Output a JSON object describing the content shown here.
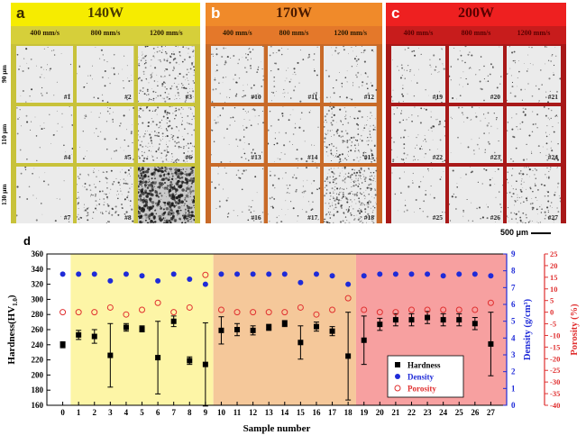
{
  "figure": {
    "panels": [
      {
        "letter": "a",
        "power": "140W",
        "header_color": "#f6ec00",
        "sub_color": "#d6cf3a",
        "border": "#c8c23a",
        "text_color": "#4a3a00",
        "speeds": [
          "400 mm/s",
          "800 mm/s",
          "1200 mm/s"
        ],
        "samples": [
          "#1",
          "#2",
          "#3",
          "#4",
          "#5",
          "#6",
          "#7",
          "#8",
          "#9"
        ]
      },
      {
        "letter": "b",
        "power": "170W",
        "header_color": "#f08a2a",
        "sub_color": "#e4782a",
        "border": "#c86a28",
        "text_color": "#4a1a00",
        "speeds": [
          "400 mm/s",
          "800 mm/s",
          "1200 mm/s"
        ],
        "samples": [
          "#10",
          "#11",
          "#12",
          "#13",
          "#14",
          "#15",
          "#16",
          "#17",
          "#18"
        ]
      },
      {
        "letter": "c",
        "power": "200W",
        "header_color": "#ee2020",
        "sub_color": "#c81c1c",
        "border": "#a81818",
        "text_color": "#5a0000",
        "speeds": [
          "400 mm/s",
          "800 mm/s",
          "1200 mm/s"
        ],
        "samples": [
          "#19",
          "#20",
          "#21",
          "#22",
          "#23",
          "#24",
          "#25",
          "#26",
          "#27"
        ]
      }
    ],
    "row_labels": [
      "90 μm",
      "110 μm",
      "130 μm"
    ],
    "scale_bar": "500 μm"
  },
  "chart_data": {
    "type": "scatter",
    "panel_letter": "d",
    "xlabel": "Sample number",
    "ylabel_left": "Hardness(HV",
    "ylabel_left_sub": "1.0",
    "ylabel_left_close": ")",
    "ylabel_right1": "Density (g/cm³)",
    "ylabel_right2": "Porosity (%)",
    "x": [
      0,
      1,
      2,
      3,
      4,
      5,
      6,
      7,
      8,
      9,
      10,
      11,
      12,
      13,
      14,
      15,
      16,
      17,
      18,
      19,
      20,
      21,
      22,
      23,
      24,
      25,
      26,
      27
    ],
    "xlim": [
      -1,
      28
    ],
    "hardness_ylim": [
      160,
      360
    ],
    "hardness_ticks": [
      160,
      180,
      200,
      220,
      240,
      260,
      280,
      300,
      320,
      340,
      360
    ],
    "density_ylim": [
      0,
      9
    ],
    "density_ticks": [
      0,
      1,
      2,
      3,
      4,
      5,
      6,
      7,
      8,
      9
    ],
    "porosity_ylim": [
      -40,
      25
    ],
    "porosity_ticks": [
      -40,
      -35,
      -30,
      -25,
      -20,
      -15,
      -10,
      -5,
      0,
      5,
      10,
      15,
      20,
      25
    ],
    "regions": [
      {
        "from": 0.5,
        "to": 9.5,
        "color": "#fdf5a6"
      },
      {
        "from": 9.5,
        "to": 18.5,
        "color": "#f5c89a"
      },
      {
        "from": 18.5,
        "to": 28,
        "color": "#f7a0a0"
      }
    ],
    "series": [
      {
        "name": "Hardness",
        "color": "#000000",
        "marker": "square",
        "values": [
          240,
          253,
          251,
          226,
          263,
          261,
          223,
          271,
          219,
          214,
          259,
          260,
          259,
          263,
          268,
          243,
          264,
          258,
          225,
          246,
          267,
          273,
          273,
          276,
          273,
          273,
          268,
          241
        ],
        "errors": [
          4,
          6,
          9,
          42,
          5,
          4,
          48,
          7,
          5,
          55,
          18,
          8,
          6,
          4,
          4,
          22,
          6,
          6,
          58,
          32,
          8,
          8,
          8,
          8,
          8,
          8,
          8,
          42
        ]
      },
      {
        "name": "Density",
        "color": "#1f2bd8",
        "marker": "circle",
        "values": [
          7.8,
          7.8,
          7.8,
          7.4,
          7.8,
          7.7,
          7.4,
          7.8,
          7.5,
          7.2,
          7.8,
          7.8,
          7.8,
          7.8,
          7.8,
          7.3,
          7.8,
          7.7,
          7.2,
          7.7,
          7.8,
          7.8,
          7.8,
          7.8,
          7.7,
          7.8,
          7.8,
          7.7
        ]
      },
      {
        "name": "Porosity",
        "color": "#e03030",
        "marker": "open-circle",
        "values": [
          0,
          0,
          0,
          2,
          -1,
          1,
          4,
          0,
          2,
          16,
          1,
          0,
          0,
          0,
          0,
          2,
          -1,
          1,
          6,
          1,
          0,
          0,
          1,
          1,
          1,
          1,
          1,
          4
        ]
      }
    ],
    "legend": {
      "position": "bottom-right",
      "items": [
        "Hardness",
        "Density",
        "Porosity"
      ]
    }
  }
}
